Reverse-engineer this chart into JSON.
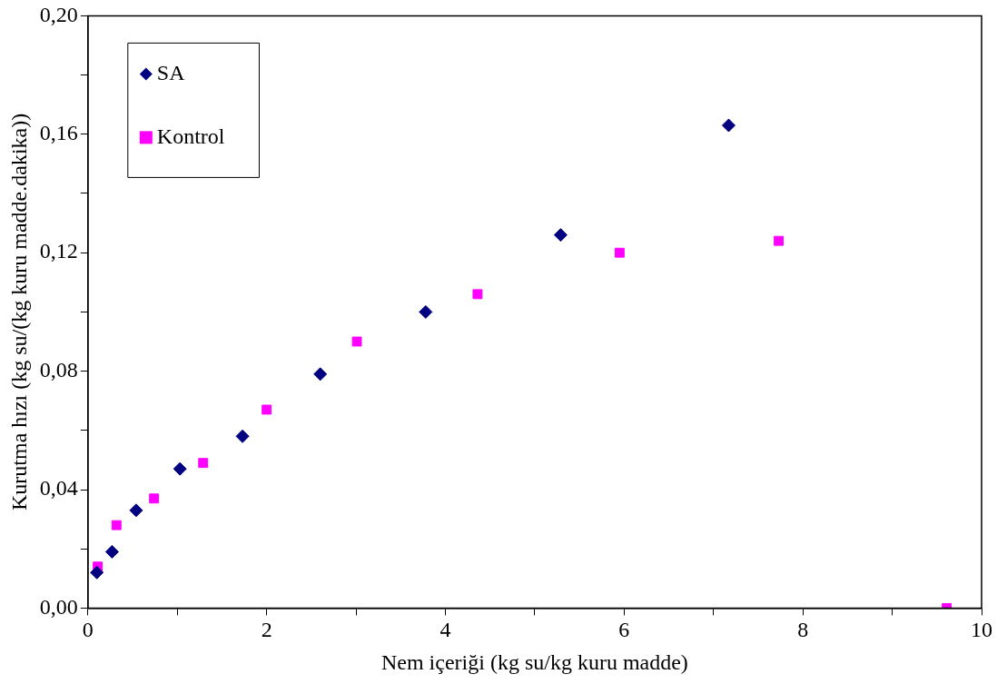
{
  "chart_data": {
    "type": "scatter",
    "xlabel": "Nem içeriği (kg su/kg kuru madde)",
    "ylabel": "Kurutma hızı (kg su/(kg kuru madde.dakika))",
    "xlim": [
      0,
      10
    ],
    "ylim": [
      0,
      0.2
    ],
    "xticks": [
      0,
      {
        "value": 1,
        "label": null
      },
      2,
      {
        "value": 3,
        "label": null
      },
      4,
      {
        "value": 5,
        "label": null
      },
      6,
      {
        "value": 7,
        "label": null
      },
      8,
      {
        "value": 9,
        "label": null
      },
      10
    ],
    "yticks": [
      {
        "value": 0,
        "label": "0,00"
      },
      {
        "value": 0.02,
        "label": null
      },
      {
        "value": 0.04,
        "label": "0,04"
      },
      {
        "value": 0.06,
        "label": null
      },
      {
        "value": 0.08,
        "label": "0,08"
      },
      {
        "value": 0.1,
        "label": null
      },
      {
        "value": 0.12,
        "label": "0,12"
      },
      {
        "value": 0.14,
        "label": null
      },
      {
        "value": 0.16,
        "label": "0,16"
      },
      {
        "value": 0.18,
        "label": null
      },
      {
        "value": 0.2,
        "label": "0,20"
      }
    ],
    "grid": false,
    "legend": "top left",
    "series": [
      {
        "name": "SA",
        "color": "#000080",
        "marker": "diamond",
        "x": [
          0.1,
          0.27,
          0.54,
          1.03,
          1.73,
          2.6,
          3.78,
          5.29,
          7.17
        ],
        "values": [
          0.012,
          0.019,
          0.033,
          0.047,
          0.058,
          0.079,
          0.1,
          0.126,
          0.163
        ]
      },
      {
        "name": "Kontrol",
        "color": "#ff00ff",
        "marker": "square",
        "x": [
          0.11,
          0.32,
          0.74,
          1.29,
          2.0,
          3.01,
          4.36,
          5.95,
          7.73,
          9.61
        ],
        "values": [
          0.014,
          0.028,
          0.037,
          0.049,
          0.067,
          0.09,
          0.106,
          0.12,
          0.124,
          0.0
        ]
      }
    ]
  }
}
